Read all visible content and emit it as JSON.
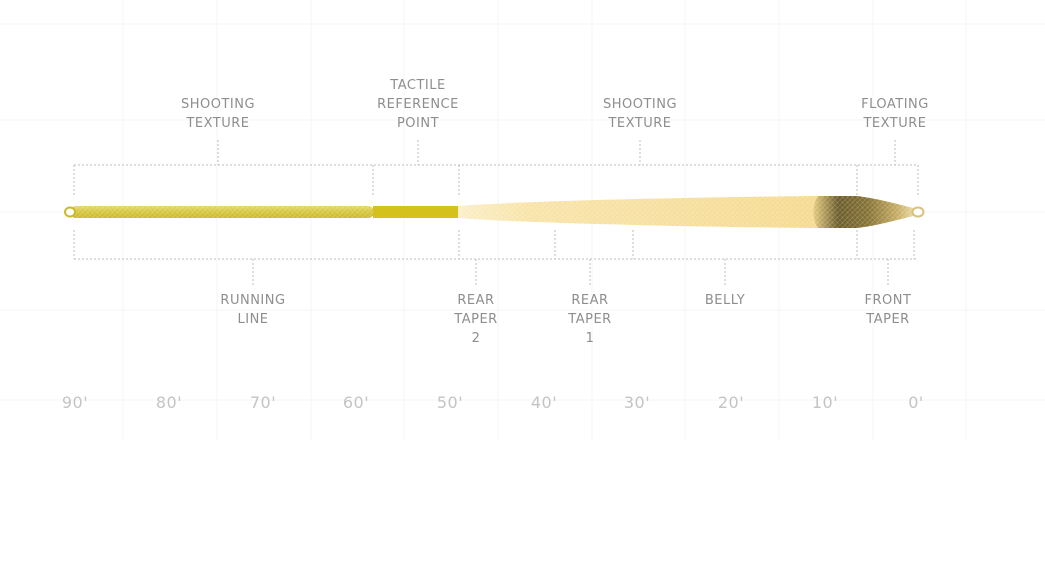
{
  "diagram": {
    "colors": {
      "running_line": "#d4c53a",
      "running_line_light": "#dbd467",
      "tactile_point": "#d4c11c",
      "head": "#f6e0a0",
      "tip_dark": "#5a4e25",
      "dotted_lines": "#bdbdbd",
      "labels": "#8e8e8e",
      "scale_labels": "#c4c4c4"
    },
    "top_labels": [
      {
        "id": "shooting-texture-1",
        "text": "SHOOTING\nTEXTURE"
      },
      {
        "id": "tactile-reference-point",
        "text": "TACTILE\nREFERENCE\nPOINT"
      },
      {
        "id": "shooting-texture-2",
        "text": "SHOOTING\nTEXTURE"
      },
      {
        "id": "floating-texture",
        "text": "FLOATING\nTEXTURE"
      }
    ],
    "bottom_labels": [
      {
        "id": "running-line",
        "text": "RUNNING\nLINE"
      },
      {
        "id": "rear-taper-2",
        "text": "REAR\nTAPER\n2"
      },
      {
        "id": "rear-taper-1",
        "text": "REAR\nTAPER\n1"
      },
      {
        "id": "belly",
        "text": "BELLY"
      },
      {
        "id": "front-taper",
        "text": "FRONT\nTAPER"
      }
    ],
    "scale": [
      "90'",
      "80'",
      "70'",
      "60'",
      "50'",
      "40'",
      "30'",
      "20'",
      "10'",
      "0'"
    ]
  }
}
